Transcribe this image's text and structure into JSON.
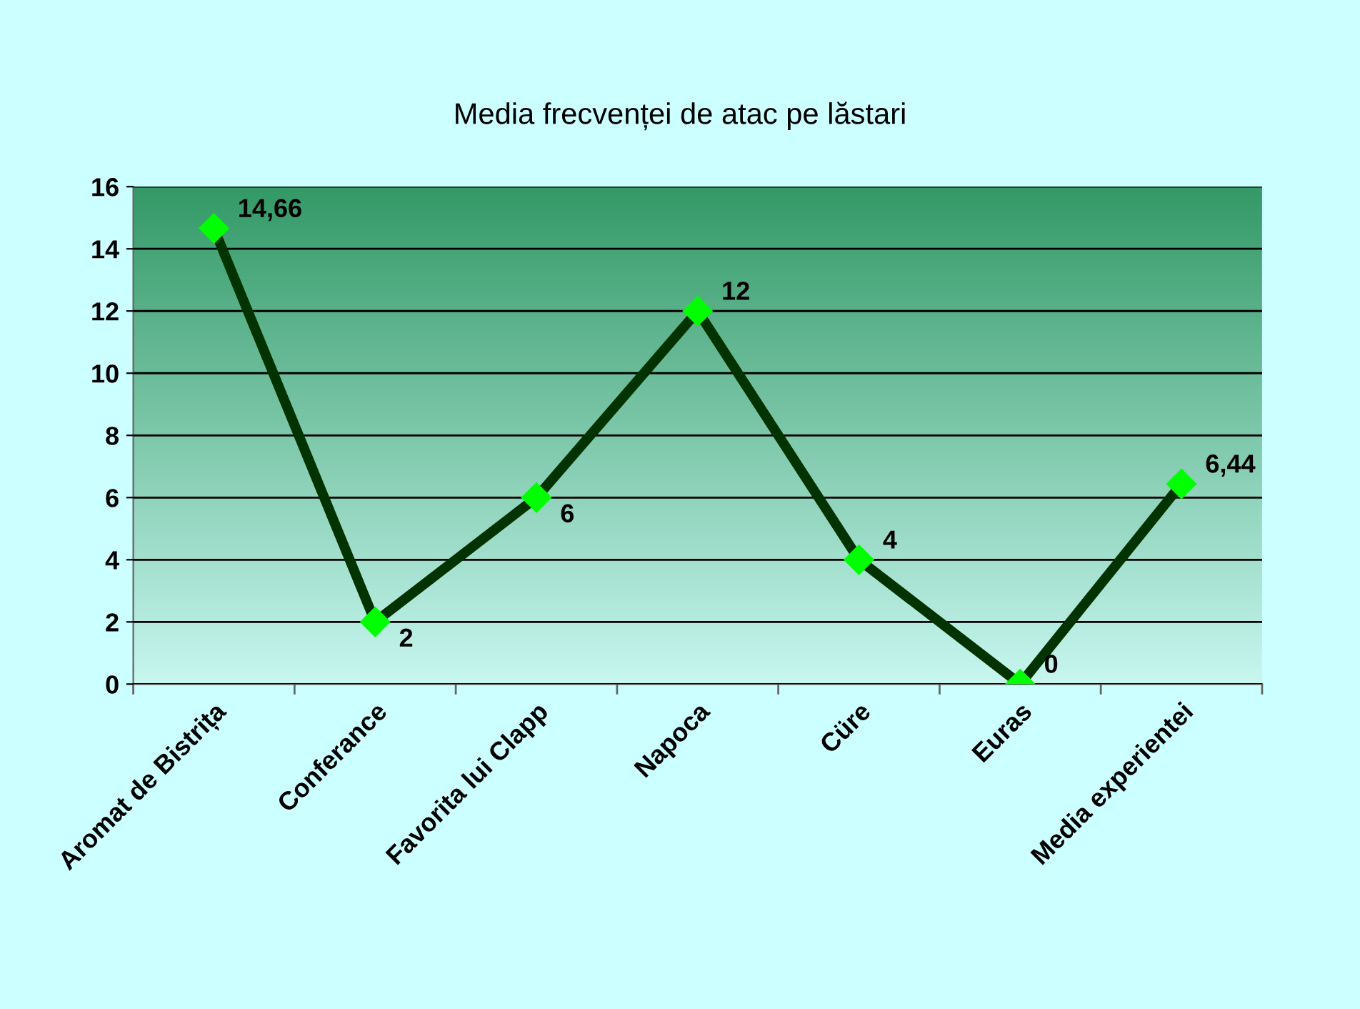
{
  "chart_data": {
    "type": "line",
    "title": "Media frecvenței de atac pe lăstari",
    "categories": [
      "Aromat de Bistrița",
      "Conferance",
      "Favorita lui Clapp",
      "Napoca",
      "Cüre",
      "Euras",
      "Media experientei"
    ],
    "series": [
      {
        "color": "#003300",
        "values": [
          14.66,
          2,
          6,
          12,
          4,
          0,
          6.44
        ],
        "value_labels": [
          "14,66",
          "2",
          "6",
          "12",
          "4",
          "0",
          "6,44"
        ]
      }
    ],
    "ylim": [
      0,
      16
    ],
    "yticks": [
      0,
      2,
      4,
      6,
      8,
      10,
      12,
      14,
      16
    ],
    "grid": "y",
    "marker": "diamond",
    "line_style": "solid"
  }
}
